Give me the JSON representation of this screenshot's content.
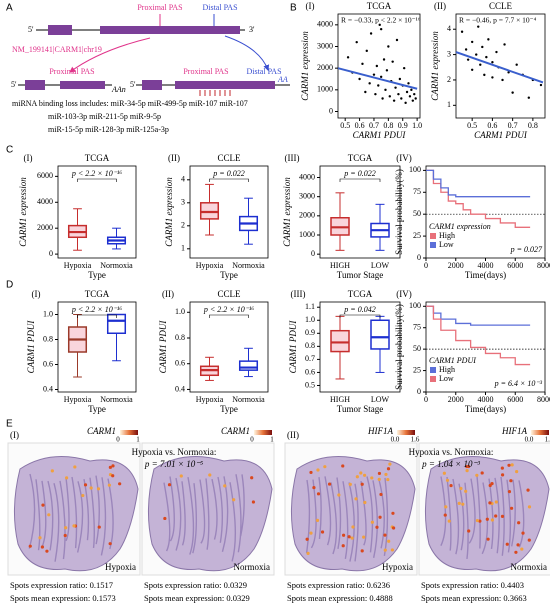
{
  "panel_a": {
    "label": "A",
    "proximal": "Proximal PAS",
    "distal": "Distal PAS",
    "gene": "NM_199141|CARM1|chr19",
    "proximal_left": "Proximal PAS",
    "proximal_right": "Proximal PAS",
    "distal_right": "Distal PAS",
    "five": "5'",
    "three": "3'",
    "polya": "AAn",
    "polya_right": "AA",
    "mirna": [
      "miRNA binding loss includes: miR-34-5p miR-499-5p miR-107 miR-107",
      "miR-103-3p miR-211-5p miR-9-5p",
      "miR-15-5p miR-128-3p miR-125a-3p"
    ]
  },
  "panel_b": {
    "label": "B",
    "charts": [
      {
        "type": "scatter",
        "panel": "(I)",
        "title": "TCGA",
        "stat": "R = −0.33, p < 2.2 × 10⁻¹⁶",
        "xlabel": "CARM1 PDUI",
        "ylabel": "CARM1 expression",
        "xlim": [
          0.45,
          1.02
        ],
        "ylim": [
          -300,
          4500
        ],
        "xticks": [
          0.5,
          0.6,
          0.7,
          0.8,
          0.9,
          {
            "value": 1.0,
            "label": "1.0"
          }
        ],
        "yticks": [
          0,
          1000,
          2000,
          3000,
          4000
        ],
        "color": "#000000",
        "fit_color": "#3a5fcd",
        "x": [
          0.52,
          0.55,
          0.58,
          0.6,
          0.62,
          0.64,
          0.65,
          0.67,
          0.68,
          0.7,
          0.71,
          0.72,
          0.73,
          0.74,
          0.75,
          0.76,
          0.77,
          0.78,
          0.79,
          0.8,
          0.81,
          0.82,
          0.83,
          0.84,
          0.85,
          0.86,
          0.87,
          0.88,
          0.89,
          0.9,
          0.91,
          0.92,
          0.93,
          0.94,
          0.95,
          0.96,
          0.97,
          0.98,
          0.99,
          0.75
        ],
        "y": [
          2500,
          1800,
          3200,
          1500,
          2200,
          900,
          2800,
          1300,
          3600,
          1700,
          800,
          2100,
          1200,
          4000,
          1600,
          600,
          2400,
          1000,
          1900,
          3000,
          700,
          1400,
          2300,
          500,
          1100,
          3300,
          800,
          1500,
          600,
          1200,
          2000,
          400,
          900,
          1300,
          700,
          1000,
          500,
          800,
          600,
          3800
        ],
        "fit": {
          "x": [
            0.45,
            1.0
          ],
          "y": [
            2000,
            1050
          ]
        }
      },
      {
        "type": "scatter",
        "panel": "(II)",
        "title": "CCLE",
        "stat": "R = −0.46, p = 7.7 × 10⁻⁴",
        "xlabel": "CARM1 PDUI",
        "ylabel": "CARM1 expression",
        "xlim": [
          0.42,
          0.86
        ],
        "ylim": [
          0.5,
          4.6
        ],
        "xticks": [
          0.5,
          0.6,
          0.7,
          0.8
        ],
        "yticks": [
          1,
          2,
          3,
          4
        ],
        "color": "#000000",
        "fit_color": "#3a5fcd",
        "x": [
          0.45,
          0.47,
          0.48,
          0.5,
          0.5,
          0.52,
          0.53,
          0.54,
          0.55,
          0.56,
          0.57,
          0.58,
          0.6,
          0.6,
          0.62,
          0.63,
          0.65,
          0.66,
          0.68,
          0.7,
          0.72,
          0.75,
          0.78,
          0.8,
          0.84
        ],
        "y": [
          3.9,
          3.2,
          2.8,
          3.5,
          2.4,
          3.0,
          4.1,
          2.6,
          3.3,
          2.2,
          2.9,
          3.6,
          2.7,
          2.1,
          3.1,
          2.5,
          2.0,
          3.4,
          2.3,
          1.5,
          2.6,
          2.2,
          1.3,
          2.0,
          1.8
        ],
        "fit": {
          "x": [
            0.42,
            0.85
          ],
          "y": [
            3.1,
            1.9
          ]
        }
      }
    ]
  },
  "panel_c": {
    "label": "C",
    "charts": [
      {
        "type": "box",
        "panel": "(I)",
        "title": "TCGA",
        "ylabel": "CARM1 expression",
        "xlabel": "Type",
        "stat": "p < 2.2 × 10⁻¹⁶",
        "ylim": [
          -300,
          6800
        ],
        "yticks": [
          0,
          2000,
          4000,
          6000
        ],
        "categories": [
          "Hypoxia",
          "Normoxia"
        ],
        "colors": [
          "#c62d2d",
          "#1d2fd0"
        ],
        "box_fill": "#f9d5dc",
        "boxes": [
          {
            "low": 300,
            "q1": 1300,
            "median": 1700,
            "q3": 2200,
            "high": 3500
          },
          {
            "low": 400,
            "q1": 800,
            "median": 1050,
            "q3": 1300,
            "high": 2000
          }
        ]
      },
      {
        "type": "box",
        "panel": "(II)",
        "title": "CCLE",
        "ylabel": "CARM1 expression",
        "xlabel": "Type",
        "stat": "p = 0.022",
        "ylim": [
          0.6,
          4.6
        ],
        "yticks": [
          1,
          2,
          3,
          4
        ],
        "categories": [
          "Hypoxia",
          "Normoxia"
        ],
        "colors": [
          "#c62d2d",
          "#1d2fd0"
        ],
        "box_fill": "#f9d5dc",
        "boxes": [
          {
            "low": 1.6,
            "q1": 2.3,
            "median": 2.6,
            "q3": 3.0,
            "high": 3.8
          },
          {
            "low": 1.2,
            "q1": 1.8,
            "median": 2.1,
            "q3": 2.4,
            "high": 3.2
          }
        ]
      },
      {
        "type": "box",
        "panel": "(III)",
        "title": "TCGA",
        "ylabel": "CARM1 expression",
        "xlabel": "Tumor Stage",
        "stat": "p = 0.022",
        "ylim": [
          -200,
          4600
        ],
        "yticks": [
          0,
          1000,
          2000,
          3000,
          4000
        ],
        "categories": [
          "HIGH",
          "LOW"
        ],
        "colors": [
          "#c62d2d",
          "#1d2fd0"
        ],
        "box_fill": "#f9d5dc",
        "boxes": [
          {
            "low": 200,
            "q1": 1000,
            "median": 1400,
            "q3": 1900,
            "high": 3200
          },
          {
            "low": 200,
            "q1": 900,
            "median": 1250,
            "q3": 1600,
            "high": 2600
          }
        ]
      },
      {
        "type": "km",
        "panel": "(IV)",
        "ylabel": "Survival probability(%)",
        "xlabel": "Time(days)",
        "stat": "p = 0.027",
        "legend_title": "CARM1 expression",
        "xlim": [
          0,
          8000
        ],
        "ylim": [
          0,
          105
        ],
        "xticks": [
          0,
          2000,
          4000,
          6000,
          8000
        ],
        "yticks": [
          0,
          25,
          50,
          75,
          100
        ],
        "reference": 50,
        "series": [
          {
            "name": "High",
            "color": "#e8707a",
            "x": [
              0,
              500,
              1000,
              1500,
              2000,
              2500,
              3000,
              4000,
              5000,
              6000,
              7000
            ],
            "y": [
              100,
              85,
              75,
              65,
              62,
              55,
              50,
              45,
              40,
              35,
              35
            ]
          },
          {
            "name": "Low",
            "color": "#5b6fd8",
            "x": [
              0,
              500,
              1000,
              1500,
              2000,
              4000,
              7000
            ],
            "y": [
              100,
              90,
              80,
              72,
              70,
              70,
              70
            ]
          }
        ]
      }
    ]
  },
  "panel_d": {
    "label": "D",
    "charts": [
      {
        "type": "box",
        "panel": "(I)",
        "title": "TCGA",
        "ylabel": "CARM1 PDUI",
        "xlabel": "Type",
        "stat": "p < 2.2 × 10⁻¹⁶",
        "ylim": [
          0.38,
          1.1
        ],
        "yticks": [
          0.4,
          0.6,
          0.8,
          {
            "value": 1.0,
            "label": "1.0"
          }
        ],
        "categories": [
          "Hypoxia",
          "Normoxia"
        ],
        "colors": [
          "#9b3a2a",
          "#1d2fd0"
        ],
        "box_fill": "#f9d5dc",
        "boxes": [
          {
            "low": 0.5,
            "q1": 0.7,
            "median": 0.8,
            "q3": 0.9,
            "high": 1.0
          },
          {
            "low": 0.63,
            "q1": 0.85,
            "median": 0.95,
            "q3": 1.0,
            "high": 1.0
          }
        ]
      },
      {
        "type": "box",
        "panel": "(II)",
        "title": "CCLE",
        "ylabel": "CARM1 PDUI",
        "xlabel": "Type",
        "stat": "p < 2.2 × 10⁻¹⁶",
        "ylim": [
          0.38,
          1.08
        ],
        "yticks": [
          0.4,
          0.6,
          0.8,
          {
            "value": 1.0,
            "label": "1.0"
          }
        ],
        "categories": [
          "Hypoxia",
          "Normoxia"
        ],
        "colors": [
          "#c62d2d",
          "#1d2fd0"
        ],
        "box_fill": "#f9d5dc",
        "boxes": [
          {
            "low": 0.47,
            "q1": 0.51,
            "median": 0.55,
            "q3": 0.58,
            "high": 0.65
          },
          {
            "low": 0.5,
            "q1": 0.55,
            "median": 0.57,
            "q3": 0.62,
            "high": 0.72
          }
        ]
      },
      {
        "type": "box",
        "panel": "(III)",
        "title": "TCGA",
        "ylabel": "CARM1 PDUI",
        "xlabel": "Tumor Stage",
        "stat": "p = 0.042",
        "ylim": [
          0.45,
          1.14
        ],
        "yticks": [
          0.5,
          0.6,
          0.7,
          0.8,
          0.9,
          {
            "value": 1.0,
            "label": "1.0"
          },
          1.1
        ],
        "categories": [
          "HIGH",
          "LOW"
        ],
        "colors": [
          "#c62d2d",
          "#1d2fd0"
        ],
        "box_fill": "#f9d5dc",
        "boxes": [
          {
            "low": 0.55,
            "q1": 0.76,
            "median": 0.83,
            "q3": 0.92,
            "high": 1.03
          },
          {
            "low": 0.6,
            "q1": 0.78,
            "median": 0.87,
            "q3": 1.0,
            "high": 1.03
          }
        ]
      },
      {
        "type": "km",
        "panel": "(IV)",
        "ylabel": "Survival probability(%)",
        "xlabel": "Time(days)",
        "stat": "p = 6.4 × 10⁻³",
        "legend_title": "CARM1 PDUI",
        "xlim": [
          0,
          8000
        ],
        "ylim": [
          0,
          105
        ],
        "xticks": [
          0,
          2000,
          4000,
          6000,
          8000
        ],
        "yticks": [
          0,
          25,
          50,
          75,
          100
        ],
        "reference": 50,
        "series": [
          {
            "name": "High",
            "color": "#5b6fd8",
            "x": [
              0,
              500,
              1000,
              2000,
              3000,
              7000
            ],
            "y": [
              100,
              92,
              85,
              80,
              78,
              78
            ]
          },
          {
            "name": "Low",
            "color": "#e8707a",
            "x": [
              0,
              500,
              1000,
              2000,
              3000,
              4000,
              5000,
              6000,
              7000
            ],
            "y": [
              100,
              85,
              72,
              60,
              52,
              45,
              40,
              32,
              32
            ]
          }
        ]
      }
    ]
  },
  "panel_e": {
    "label": "E",
    "parts": [
      {
        "panel": "(I)",
        "genes": [
          "CARM1",
          "CARM1"
        ],
        "scale": [
          [
            "0",
            "1"
          ],
          [
            "0",
            "1"
          ]
        ],
        "comparison": "Hypoxia vs. Normoxia:",
        "p": "p = 7.01 × 10⁻⁵",
        "conditions": [
          "Hypoxia",
          "Normoxia"
        ],
        "ratio": [
          "Spots expression ratio: 0.1517",
          "Spots expression ratio: 0.0329"
        ],
        "mean": [
          "Spots mean expression: 0.1573",
          "Spots mean expression: 0.0329"
        ]
      },
      {
        "panel": "(II)",
        "genes": [
          "HIF1A",
          "HIF1A"
        ],
        "scale": [
          [
            "0.0",
            "1.6"
          ],
          [
            "0.0",
            "1.6"
          ]
        ],
        "comparison": "Hypoxia vs. Normoxia:",
        "p": "p = 1.04 × 10⁻³",
        "conditions": [
          "Hypoxia",
          "Normoxia"
        ],
        "ratio": [
          "Spots expression ratio: 0.6236",
          "Spots expression ratio: 0.4403"
        ],
        "mean": [
          "Spots mean expression: 0.4888",
          "Spots mean expression: 0.3663"
        ]
      }
    ]
  }
}
